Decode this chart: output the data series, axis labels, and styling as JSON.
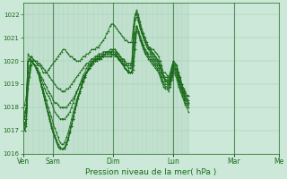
{
  "title": "",
  "xlabel": "Pression niveau de la mer( hPa )",
  "ylabel": "",
  "background_color": "#cce8d8",
  "plot_bg_color": "#cce8d8",
  "line_color": "#1a6b1a",
  "marker_color": "#1a6b1a",
  "grid_color": "#99c8aa",
  "ylim": [
    1016,
    1022.5
  ],
  "yticks": [
    1016,
    1017,
    1018,
    1019,
    1020,
    1021,
    1022
  ],
  "x_day_labels": [
    "Ven",
    "Sam",
    "Dim",
    "Lun",
    "Mar",
    "Me"
  ],
  "x_day_positions": [
    0,
    24,
    72,
    120,
    168,
    204
  ],
  "series": [
    [
      1017.5,
      1017.8,
      1018.0,
      1020.0,
      1020.1,
      1020.2,
      1020.0,
      1020.0,
      1019.9,
      1019.8,
      1019.8,
      1019.7,
      1019.5,
      1019.5,
      1019.5,
      1019.6,
      1019.7,
      1019.8,
      1019.9,
      1020.0,
      1020.1,
      1020.2,
      1020.3,
      1020.4,
      1020.5,
      1020.5,
      1020.4,
      1020.3,
      1020.2,
      1020.2,
      1020.1,
      1020.1,
      1020.0,
      1020.0,
      1020.0,
      1020.1,
      1020.2,
      1020.2,
      1020.3,
      1020.3,
      1020.4,
      1020.5,
      1020.5,
      1020.5,
      1020.6,
      1020.6,
      1020.7,
      1020.8,
      1020.9,
      1021.0,
      1021.2,
      1021.3,
      1021.5,
      1021.6,
      1021.6,
      1021.5,
      1021.4,
      1021.3,
      1021.2,
      1021.1,
      1021.0,
      1020.9,
      1020.9,
      1020.8,
      1020.8,
      1020.8,
      1021.5,
      1022.0,
      1022.0,
      1021.8,
      1021.5,
      1021.2,
      1021.0,
      1020.8,
      1020.7,
      1020.6,
      1020.6,
      1020.5,
      1020.5,
      1020.4,
      1020.3,
      1020.2,
      1020.0,
      1019.8,
      1019.5,
      1019.5,
      1019.4,
      1019.3,
      1019.5,
      1019.8,
      1020.0,
      1019.9,
      1019.8,
      1019.5,
      1019.3,
      1019.0,
      1018.8,
      1018.7,
      1018.5,
      1018.5
    ],
    [
      1017.5,
      1017.6,
      1018.0,
      1020.0,
      1020.0,
      1020.0,
      1019.9,
      1019.8,
      1019.7,
      1019.6,
      1019.5,
      1019.3,
      1019.2,
      1019.0,
      1018.9,
      1018.7,
      1018.6,
      1018.5,
      1018.3,
      1018.2,
      1018.2,
      1018.1,
      1018.0,
      1018.0,
      1018.0,
      1018.0,
      1018.0,
      1018.1,
      1018.2,
      1018.3,
      1018.4,
      1018.5,
      1018.7,
      1018.8,
      1019.0,
      1019.1,
      1019.3,
      1019.4,
      1019.5,
      1019.6,
      1019.7,
      1019.8,
      1019.9,
      1020.0,
      1020.0,
      1020.1,
      1020.1,
      1020.2,
      1020.2,
      1020.3,
      1020.3,
      1020.3,
      1020.4,
      1020.4,
      1020.5,
      1020.5,
      1020.4,
      1020.3,
      1020.2,
      1020.1,
      1020.0,
      1019.9,
      1019.8,
      1019.8,
      1019.8,
      1019.8,
      1021.0,
      1022.0,
      1022.1,
      1021.9,
      1021.6,
      1021.3,
      1021.1,
      1020.9,
      1020.7,
      1020.6,
      1020.5,
      1020.4,
      1020.3,
      1020.2,
      1020.1,
      1020.0,
      1019.8,
      1019.5,
      1019.3,
      1019.2,
      1019.1,
      1019.0,
      1019.2,
      1019.5,
      1019.8,
      1019.7,
      1019.6,
      1019.3,
      1019.0,
      1018.8,
      1018.6,
      1018.4,
      1018.3,
      1018.2
    ],
    [
      1017.8,
      1018.1,
      1018.5,
      1020.0,
      1020.1,
      1020.2,
      1020.1,
      1020.0,
      1020.0,
      1019.9,
      1019.9,
      1019.8,
      1019.7,
      1019.6,
      1019.5,
      1019.4,
      1019.3,
      1019.2,
      1019.1,
      1019.0,
      1018.9,
      1018.8,
      1018.8,
      1018.7,
      1018.7,
      1018.7,
      1018.8,
      1018.8,
      1018.9,
      1019.0,
      1019.1,
      1019.2,
      1019.3,
      1019.4,
      1019.5,
      1019.6,
      1019.7,
      1019.8,
      1019.9,
      1019.9,
      1020.0,
      1020.1,
      1020.1,
      1020.2,
      1020.2,
      1020.3,
      1020.3,
      1020.3,
      1020.4,
      1020.4,
      1020.4,
      1020.4,
      1020.5,
      1020.5,
      1020.5,
      1020.5,
      1020.4,
      1020.3,
      1020.2,
      1020.1,
      1020.1,
      1020.0,
      1019.9,
      1019.9,
      1019.9,
      1019.9,
      1021.2,
      1022.0,
      1022.2,
      1022.0,
      1021.7,
      1021.4,
      1021.2,
      1021.0,
      1020.8,
      1020.6,
      1020.5,
      1020.4,
      1020.3,
      1020.2,
      1020.1,
      1020.0,
      1019.8,
      1019.6,
      1019.4,
      1019.3,
      1019.3,
      1019.2,
      1019.4,
      1019.7,
      1020.0,
      1019.9,
      1019.8,
      1019.5,
      1019.2,
      1019.0,
      1018.8,
      1018.6,
      1018.5,
      1018.5
    ],
    [
      1017.5,
      1017.5,
      1018.0,
      1020.3,
      1020.2,
      1020.0,
      1019.9,
      1019.8,
      1019.7,
      1019.5,
      1019.4,
      1019.2,
      1019.0,
      1018.8,
      1018.6,
      1018.5,
      1018.4,
      1018.2,
      1018.0,
      1017.8,
      1017.7,
      1017.6,
      1017.5,
      1017.5,
      1017.5,
      1017.5,
      1017.6,
      1017.7,
      1017.8,
      1018.0,
      1018.2,
      1018.4,
      1018.6,
      1018.8,
      1019.0,
      1019.2,
      1019.4,
      1019.5,
      1019.7,
      1019.8,
      1019.9,
      1020.0,
      1020.0,
      1020.1,
      1020.2,
      1020.2,
      1020.3,
      1020.3,
      1020.3,
      1020.3,
      1020.4,
      1020.4,
      1020.4,
      1020.4,
      1020.4,
      1020.4,
      1020.3,
      1020.2,
      1020.1,
      1020.0,
      1019.9,
      1019.8,
      1019.8,
      1019.7,
      1019.7,
      1019.7,
      1020.8,
      1021.8,
      1021.9,
      1021.7,
      1021.4,
      1021.2,
      1021.0,
      1020.8,
      1020.6,
      1020.5,
      1020.4,
      1020.3,
      1020.2,
      1020.1,
      1020.0,
      1019.9,
      1019.7,
      1019.5,
      1019.3,
      1019.2,
      1019.2,
      1019.1,
      1019.3,
      1019.6,
      1019.9,
      1019.8,
      1019.7,
      1019.4,
      1019.1,
      1018.9,
      1018.7,
      1018.5,
      1018.4,
      1018.3
    ],
    [
      1017.5,
      1017.3,
      1017.5,
      1019.5,
      1019.8,
      1020.0,
      1019.9,
      1019.8,
      1019.6,
      1019.5,
      1019.3,
      1019.0,
      1018.8,
      1018.5,
      1018.3,
      1018.0,
      1017.8,
      1017.6,
      1017.3,
      1017.1,
      1016.9,
      1016.7,
      1016.5,
      1016.4,
      1016.4,
      1016.5,
      1016.7,
      1016.9,
      1017.2,
      1017.5,
      1017.8,
      1018.0,
      1018.3,
      1018.5,
      1018.7,
      1018.9,
      1019.1,
      1019.3,
      1019.5,
      1019.6,
      1019.7,
      1019.8,
      1019.9,
      1020.0,
      1020.0,
      1020.1,
      1020.1,
      1020.1,
      1020.2,
      1020.2,
      1020.2,
      1020.2,
      1020.2,
      1020.2,
      1020.3,
      1020.2,
      1020.2,
      1020.1,
      1020.0,
      1019.9,
      1019.8,
      1019.7,
      1019.6,
      1019.6,
      1019.5,
      1019.5,
      1020.2,
      1021.2,
      1021.5,
      1021.3,
      1021.1,
      1020.9,
      1020.7,
      1020.5,
      1020.4,
      1020.3,
      1020.3,
      1020.2,
      1020.1,
      1020.0,
      1019.9,
      1019.8,
      1019.7,
      1019.5,
      1019.3,
      1019.1,
      1019.1,
      1019.0,
      1019.2,
      1019.5,
      1019.8,
      1019.7,
      1019.5,
      1019.2,
      1019.0,
      1018.8,
      1018.6,
      1018.4,
      1018.3,
      1018.2
    ],
    [
      1017.5,
      1017.2,
      1017.5,
      1019.2,
      1019.6,
      1020.0,
      1019.9,
      1019.8,
      1019.7,
      1019.5,
      1019.3,
      1019.0,
      1018.7,
      1018.4,
      1018.1,
      1017.8,
      1017.6,
      1017.3,
      1017.0,
      1016.8,
      1016.6,
      1016.4,
      1016.3,
      1016.2,
      1016.2,
      1016.3,
      1016.5,
      1016.7,
      1017.0,
      1017.3,
      1017.6,
      1017.9,
      1018.2,
      1018.5,
      1018.7,
      1019.0,
      1019.2,
      1019.4,
      1019.5,
      1019.7,
      1019.8,
      1019.9,
      1020.0,
      1020.1,
      1020.1,
      1020.2,
      1020.2,
      1020.2,
      1020.3,
      1020.3,
      1020.3,
      1020.3,
      1020.3,
      1020.3,
      1020.3,
      1020.3,
      1020.2,
      1020.1,
      1020.0,
      1019.9,
      1019.8,
      1019.7,
      1019.6,
      1019.5,
      1019.5,
      1019.5,
      1020.0,
      1021.0,
      1021.5,
      1021.3,
      1021.0,
      1020.8,
      1020.6,
      1020.4,
      1020.3,
      1020.2,
      1020.2,
      1020.1,
      1020.0,
      1019.9,
      1019.8,
      1019.7,
      1019.5,
      1019.3,
      1019.1,
      1019.0,
      1019.0,
      1018.9,
      1019.1,
      1019.4,
      1019.7,
      1019.6,
      1019.4,
      1019.1,
      1018.9,
      1018.7,
      1018.5,
      1018.3,
      1018.2,
      1018.1
    ],
    [
      1017.5,
      1017.0,
      1017.3,
      1019.0,
      1019.5,
      1020.0,
      1019.9,
      1019.8,
      1019.7,
      1019.5,
      1019.2,
      1018.9,
      1018.6,
      1018.3,
      1018.0,
      1017.7,
      1017.5,
      1017.2,
      1016.9,
      1016.7,
      1016.5,
      1016.3,
      1016.2,
      1016.2,
      1016.2,
      1016.2,
      1016.4,
      1016.6,
      1016.9,
      1017.2,
      1017.5,
      1017.8,
      1018.1,
      1018.4,
      1018.6,
      1018.9,
      1019.1,
      1019.3,
      1019.5,
      1019.6,
      1019.7,
      1019.9,
      1020.0,
      1020.0,
      1020.1,
      1020.1,
      1020.2,
      1020.2,
      1020.2,
      1020.3,
      1020.3,
      1020.3,
      1020.3,
      1020.3,
      1020.3,
      1020.3,
      1020.2,
      1020.1,
      1020.0,
      1019.9,
      1019.8,
      1019.7,
      1019.6,
      1019.5,
      1019.5,
      1019.5,
      1019.8,
      1020.8,
      1021.5,
      1021.3,
      1021.0,
      1020.8,
      1020.6,
      1020.4,
      1020.3,
      1020.2,
      1020.1,
      1020.0,
      1019.9,
      1019.8,
      1019.7,
      1019.6,
      1019.4,
      1019.2,
      1019.0,
      1018.9,
      1018.9,
      1018.8,
      1019.0,
      1019.3,
      1019.6,
      1019.5,
      1019.3,
      1019.0,
      1018.8,
      1018.6,
      1018.4,
      1018.2,
      1018.1,
      1018.0
    ],
    [
      1017.5,
      1017.0,
      1017.2,
      1018.8,
      1019.3,
      1019.8,
      1019.9,
      1019.8,
      1019.7,
      1019.5,
      1019.2,
      1018.9,
      1018.6,
      1018.3,
      1018.0,
      1017.7,
      1017.4,
      1017.1,
      1016.9,
      1016.7,
      1016.5,
      1016.3,
      1016.2,
      1016.2,
      1016.2,
      1016.2,
      1016.4,
      1016.6,
      1016.9,
      1017.2,
      1017.5,
      1017.8,
      1018.1,
      1018.4,
      1018.7,
      1018.9,
      1019.1,
      1019.3,
      1019.5,
      1019.6,
      1019.7,
      1019.9,
      1020.0,
      1020.0,
      1020.1,
      1020.1,
      1020.2,
      1020.2,
      1020.2,
      1020.3,
      1020.3,
      1020.3,
      1020.3,
      1020.3,
      1020.3,
      1020.3,
      1020.2,
      1020.1,
      1020.0,
      1019.9,
      1019.8,
      1019.7,
      1019.6,
      1019.5,
      1019.5,
      1019.5,
      1019.6,
      1020.5,
      1021.3,
      1021.2,
      1020.9,
      1020.7,
      1020.5,
      1020.3,
      1020.2,
      1020.1,
      1020.0,
      1019.9,
      1019.8,
      1019.7,
      1019.6,
      1019.5,
      1019.3,
      1019.1,
      1018.9,
      1018.8,
      1018.8,
      1018.7,
      1018.9,
      1019.2,
      1019.5,
      1019.4,
      1019.2,
      1018.9,
      1018.7,
      1018.5,
      1018.3,
      1018.1,
      1018.0,
      1017.8
    ]
  ]
}
